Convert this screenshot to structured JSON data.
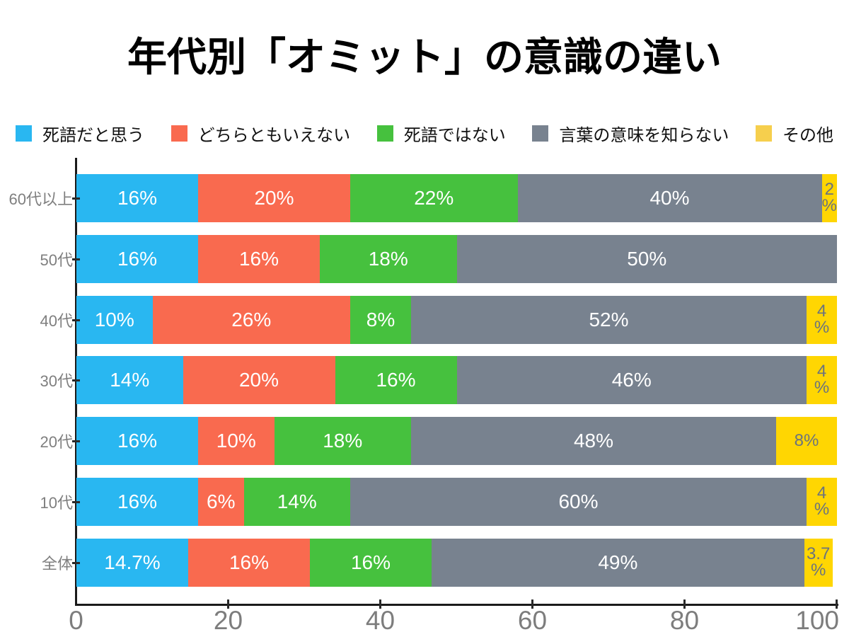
{
  "title": "年代別「オミット」の意識の違い",
  "legend": [
    {
      "label": "死語だと思う",
      "color": "#29B7F1"
    },
    {
      "label": "どちらともいえない",
      "color": "#F96A4F"
    },
    {
      "label": "死語ではない",
      "color": "#46C13E"
    },
    {
      "label": "言葉の意味を知らない",
      "color": "#78828F"
    },
    {
      "label": "その他",
      "color": "#F6CF4D"
    }
  ],
  "chart_data": {
    "type": "bar",
    "orientation": "horizontal",
    "stacked": true,
    "title": "年代別「オミット」の意識の違い",
    "categories": [
      "60代以上",
      "50代",
      "40代",
      "30代",
      "20代",
      "10代",
      "全体"
    ],
    "series": [
      {
        "name": "死語だと思う",
        "color": "#29B7F1",
        "values": [
          16,
          16,
          10,
          14,
          16,
          16,
          14.7
        ],
        "labels": [
          "16%",
          "16%",
          "10%",
          "14%",
          "16%",
          "16%",
          "14.7%"
        ]
      },
      {
        "name": "どちらともいえない",
        "color": "#F96A4F",
        "values": [
          20,
          16,
          26,
          20,
          10,
          6,
          16
        ],
        "labels": [
          "20%",
          "16%",
          "26%",
          "20%",
          "10%",
          "6%",
          "16%"
        ]
      },
      {
        "name": "死語ではない",
        "color": "#46C13E",
        "values": [
          22,
          18,
          8,
          16,
          18,
          14,
          16
        ],
        "labels": [
          "22%",
          "18%",
          "8%",
          "16%",
          "18%",
          "14%",
          "16%"
        ]
      },
      {
        "name": "言葉の意味を知らない",
        "color": "#78828F",
        "values": [
          40,
          50,
          52,
          46,
          48,
          60,
          49
        ],
        "labels": [
          "40%",
          "50%",
          "52%",
          "46%",
          "48%",
          "60%",
          "49%"
        ]
      },
      {
        "name": "その他",
        "color": "#FFD602",
        "values": [
          2,
          0,
          4,
          4,
          8,
          4,
          3.7
        ],
        "labels": [
          "2\n%",
          "",
          "4\n%",
          "4\n%",
          "8%",
          "4\n%",
          "3.7\n%"
        ]
      }
    ],
    "xticks": [
      0,
      20,
      40,
      60,
      80,
      100
    ],
    "xlim": [
      0,
      100
    ],
    "label_color_on_dark": "#ffffff",
    "label_color_on_yellow": "#6B737E",
    "axis_text_color": "#7d7d7d"
  }
}
